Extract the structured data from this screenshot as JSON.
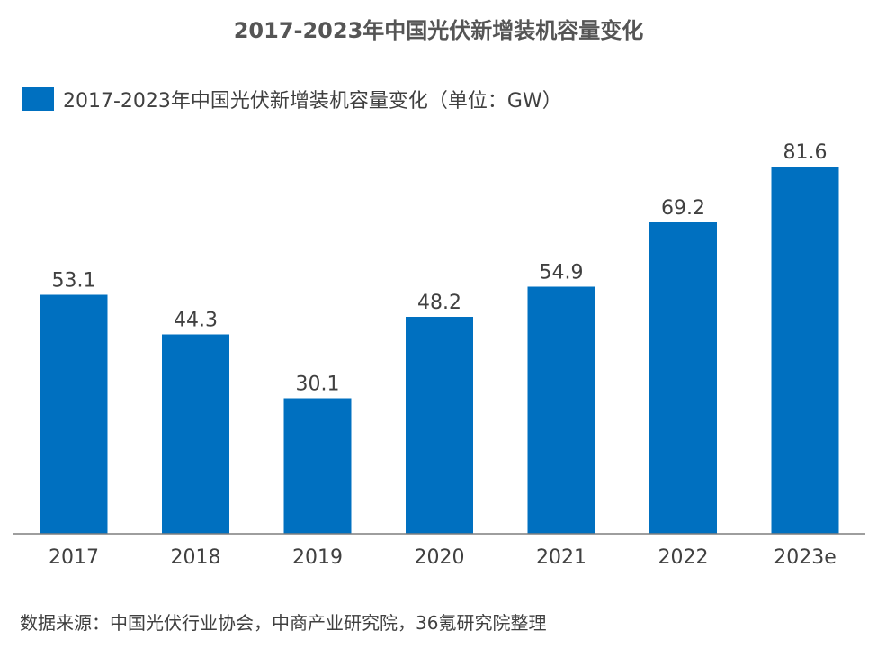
{
  "chart_data": {
    "type": "bar",
    "title": "2017-2023年中国光伏新增装机容量变化",
    "categories": [
      "2017",
      "2018",
      "2019",
      "2020",
      "2021",
      "2022",
      "2023e"
    ],
    "series": [
      {
        "name": "2017-2023年中国光伏新增装机容量变化（单位：GW）",
        "values": [
          53.1,
          44.3,
          30.1,
          48.2,
          54.9,
          69.2,
          81.6
        ],
        "color": "#0070C0"
      }
    ],
    "data_labels": [
      "53.1",
      "44.3",
      "30.1",
      "48.2",
      "54.9",
      "69.2",
      "81.6"
    ],
    "ylim": [
      0,
      81.6
    ],
    "grid": false,
    "legend_position": "top-left",
    "axis_color": "#7f7f7f"
  },
  "source_note": "数据来源：中国光伏行业协会，中商产业研究院，36氪研究院整理"
}
